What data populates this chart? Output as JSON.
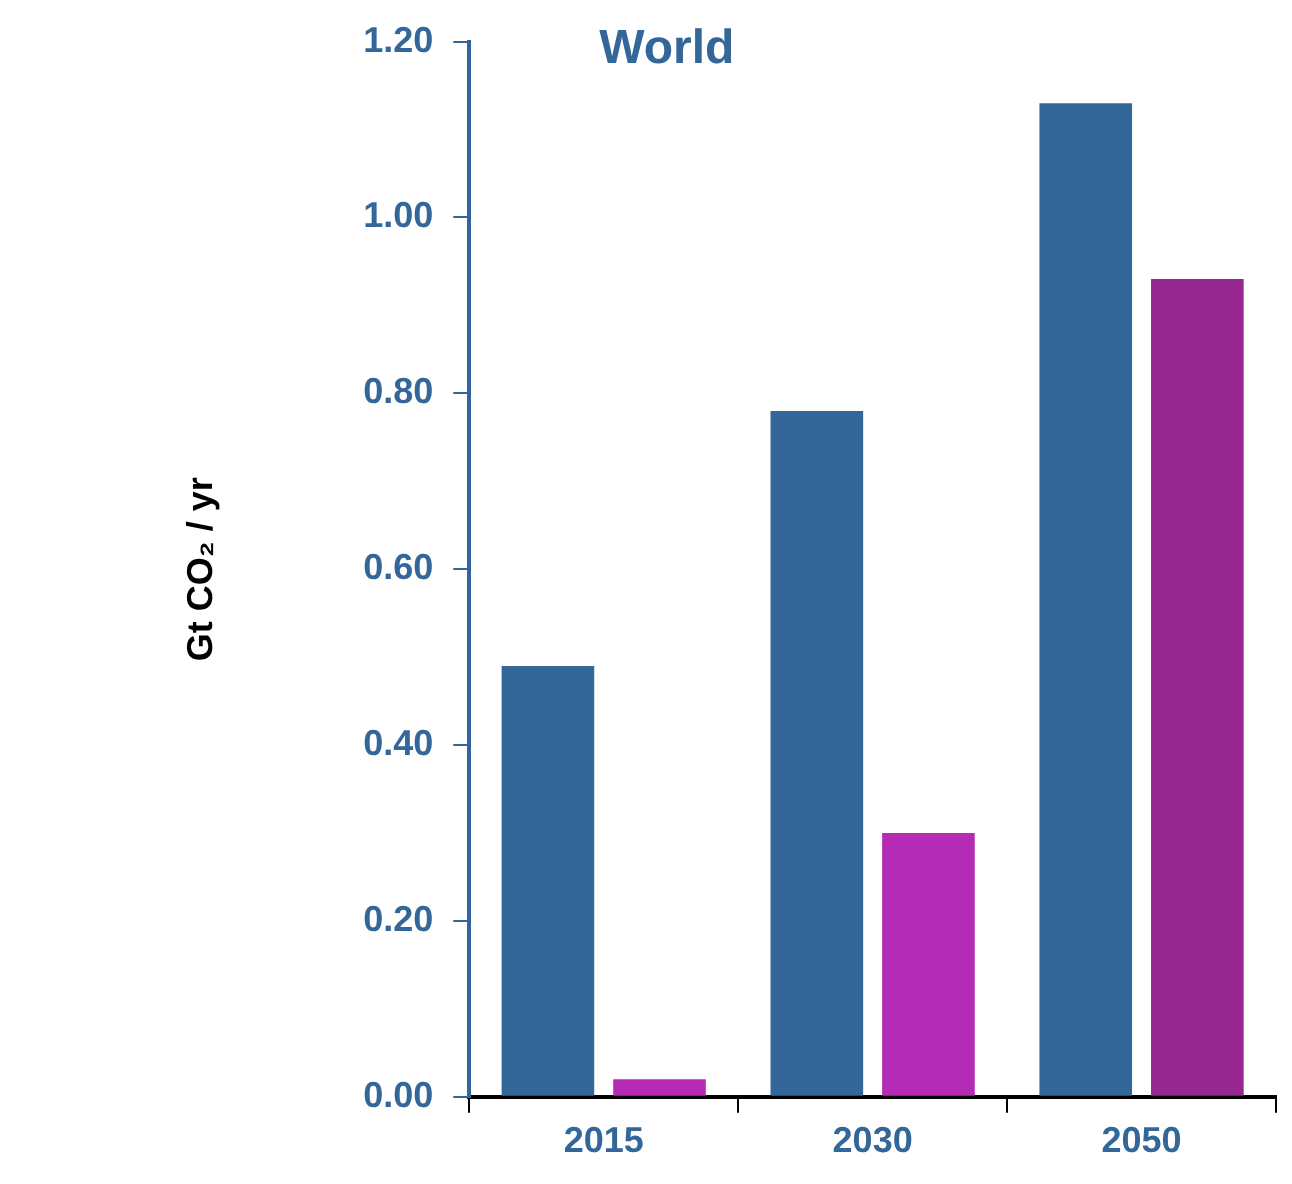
{
  "chart_data": {
    "type": "bar",
    "title": "World",
    "ylabel": "Gt CO₂ / yr",
    "categories": [
      "2015",
      "2030",
      "2050"
    ],
    "series": [
      {
        "color": "#336699",
        "values": [
          0.49,
          0.78,
          1.13
        ]
      },
      {
        "colors": [
          "#b52bb5",
          "#b52bb5",
          "#962890"
        ],
        "values": [
          0.02,
          0.3,
          0.93
        ]
      }
    ],
    "ylim": [
      0,
      1.2
    ],
    "yticks": [
      {
        "value": 0,
        "label": "0.00"
      },
      {
        "value": 0.2,
        "label": "0.20"
      },
      {
        "value": 0.4,
        "label": "0.40"
      },
      {
        "value": 0.6,
        "label": "0.60"
      },
      {
        "value": 0.8,
        "label": "0.80"
      },
      {
        "value": 1,
        "label": "1.00"
      },
      {
        "value": 1.2,
        "label": "1.20"
      }
    ],
    "grid": false,
    "legend": false
  }
}
